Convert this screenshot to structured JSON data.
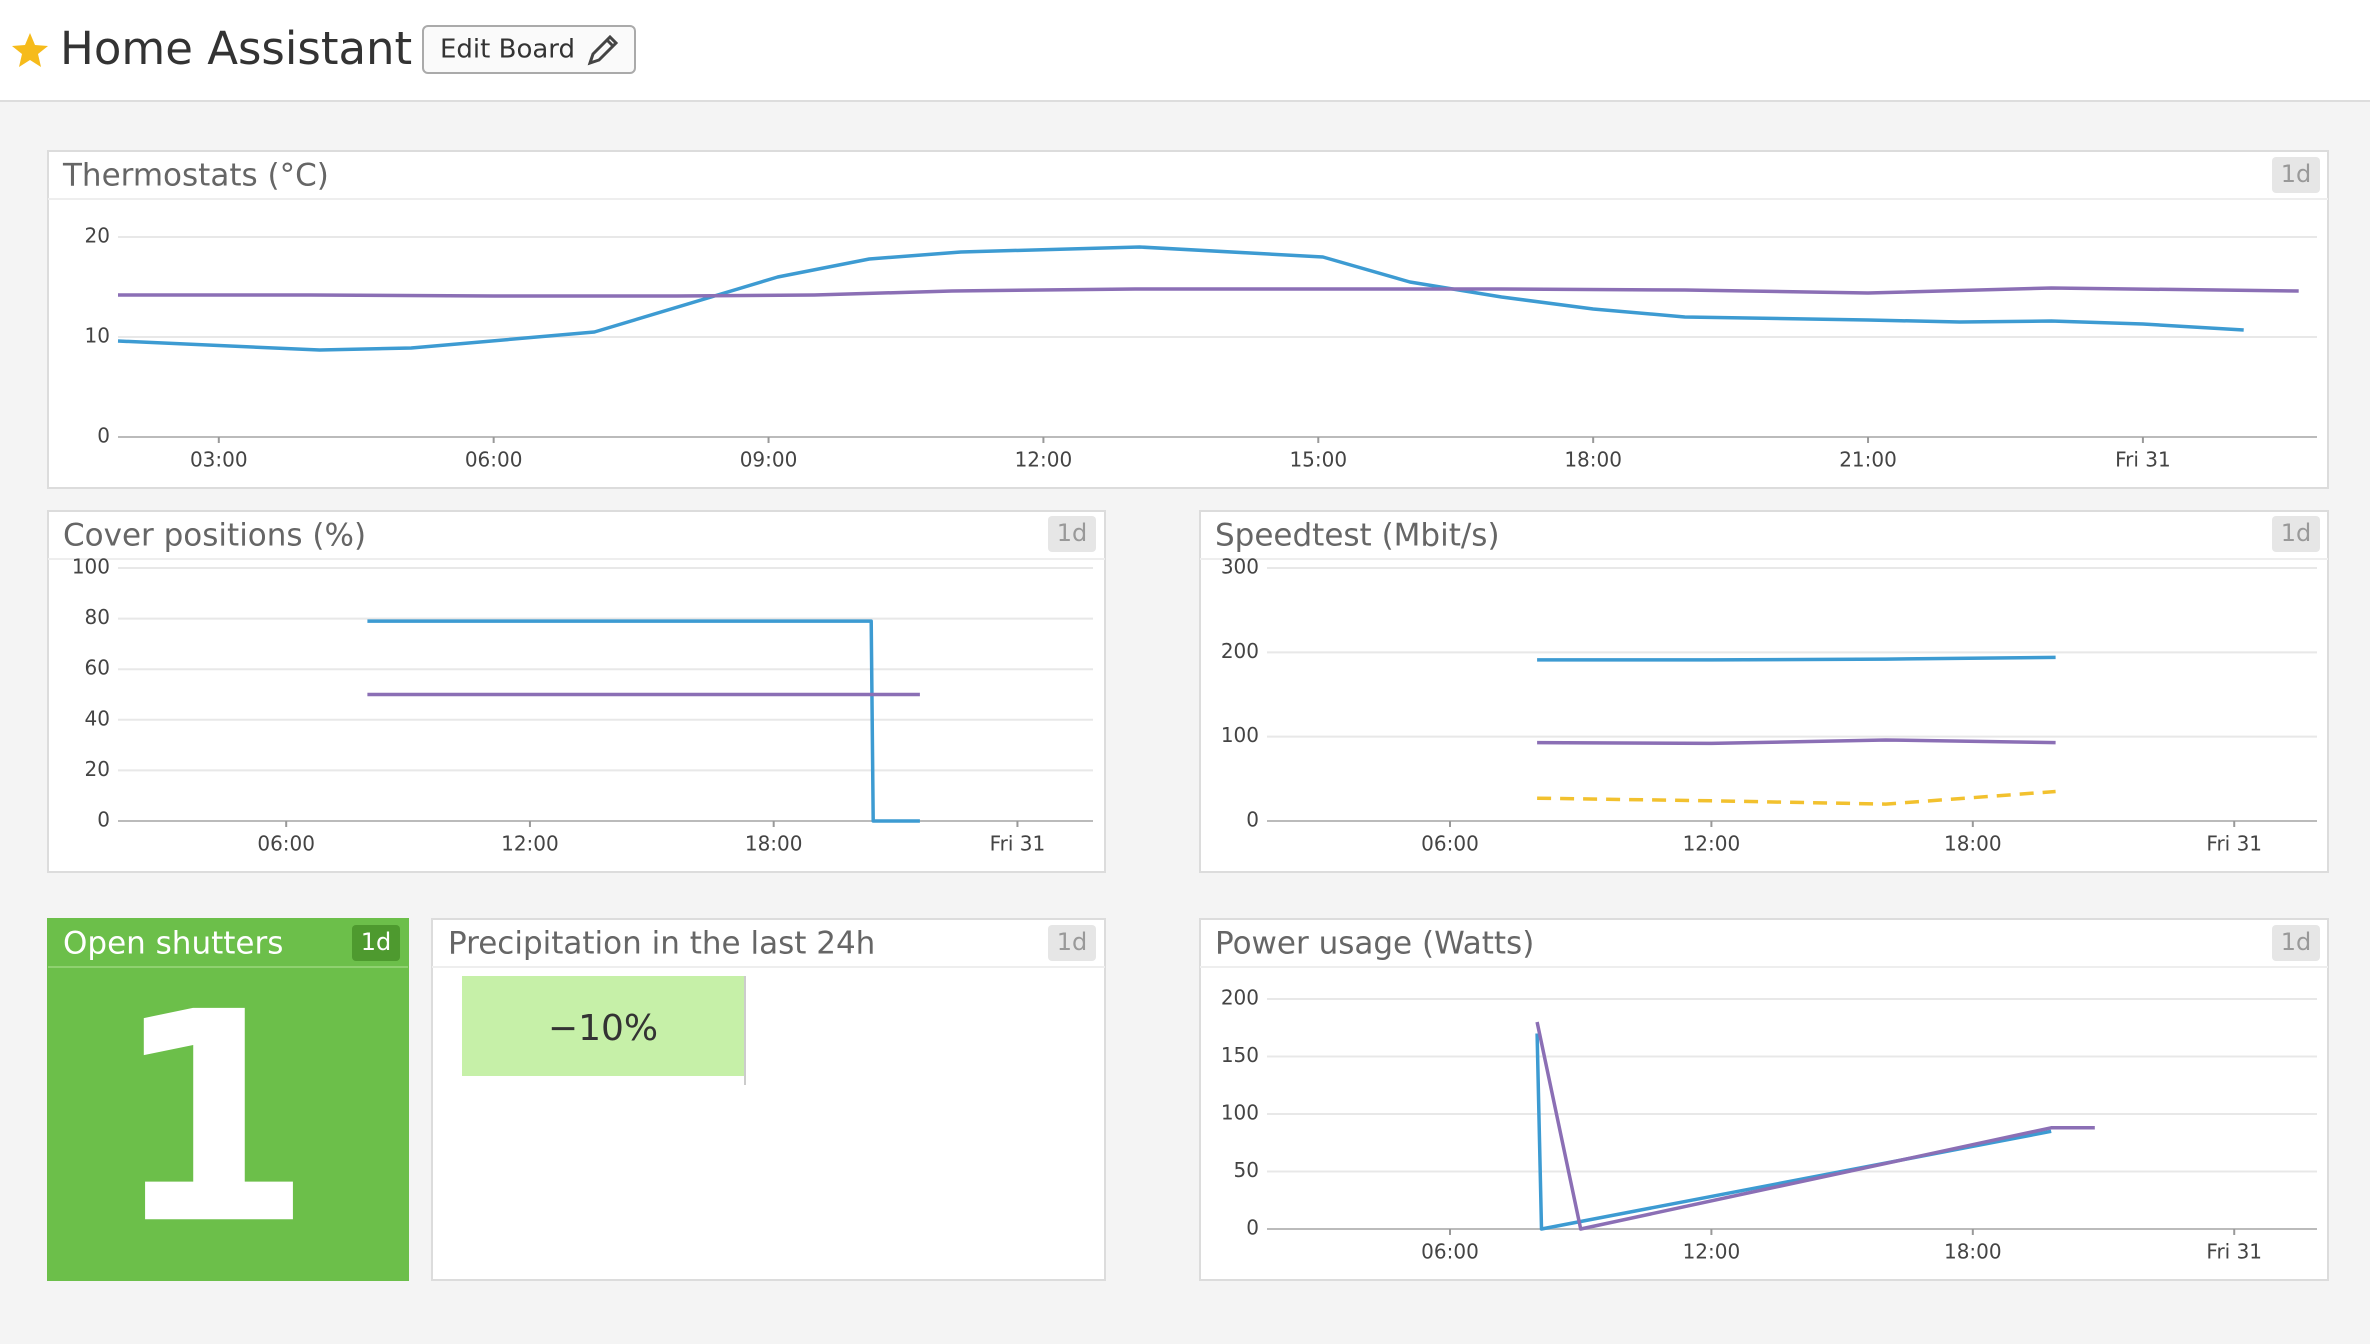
{
  "header": {
    "title": "Home Assistant",
    "button": "Edit Board"
  },
  "chart_data": [
    {
      "type": "line",
      "title": "Thermostats (°C)",
      "badge": "1d",
      "xlim": [
        1.9,
        25.9
      ],
      "ylim": [
        0,
        20
      ],
      "yticks": [
        0,
        10,
        20
      ],
      "xticks": [
        {
          "value": 3,
          "label": "03:00"
        },
        {
          "value": 6,
          "label": "06:00"
        },
        {
          "value": 9,
          "label": "09:00"
        },
        {
          "value": 12,
          "label": "12:00"
        },
        {
          "value": 15,
          "label": "15:00"
        },
        {
          "value": 18,
          "label": "18:00"
        },
        {
          "value": 21,
          "label": "21:00"
        },
        {
          "value": 24,
          "label": "Fri 31"
        }
      ],
      "grid": true,
      "series": [
        {
          "color": "#3d9bd2",
          "x": [
            1.9,
            4.1,
            5.1,
            7.1,
            9.1,
            10.1,
            11.1,
            13.05,
            15.05,
            16.0,
            17.0,
            18.0,
            19.0,
            21.0,
            22.0,
            23.0,
            24.0,
            25.1
          ],
          "values": [
            9.6,
            8.7,
            8.9,
            10.5,
            16,
            17.8,
            18.5,
            19,
            18,
            15.5,
            14,
            12.8,
            12,
            11.7,
            11.5,
            11.6,
            11.3,
            10.7
          ]
        },
        {
          "color": "#8b6fb5",
          "x": [
            1.9,
            4,
            6,
            8,
            9.5,
            11,
            13,
            15,
            17,
            19,
            21,
            23,
            25.7
          ],
          "values": [
            14.2,
            14.2,
            14.1,
            14.1,
            14.2,
            14.6,
            14.8,
            14.8,
            14.8,
            14.7,
            14.4,
            14.9,
            14.6
          ]
        }
      ]
    },
    {
      "type": "line",
      "title": "Cover positions (%)",
      "badge": "1d",
      "xlim": [
        1.86,
        25.86
      ],
      "ylim": [
        0,
        100
      ],
      "yticks": [
        0,
        20,
        40,
        60,
        80,
        100
      ],
      "xticks": [
        {
          "value": 6,
          "label": "06:00"
        },
        {
          "value": 12,
          "label": "12:00"
        },
        {
          "value": 18,
          "label": "18:00"
        },
        {
          "value": 24,
          "label": "Fri 31"
        }
      ],
      "grid": true,
      "series": [
        {
          "color": "#3d9bd2",
          "x": [
            8.0,
            20.4,
            20.45,
            21.6
          ],
          "values": [
            79,
            79,
            0,
            0
          ]
        },
        {
          "color": "#8b6fb5",
          "x": [
            8.0,
            21.6
          ],
          "values": [
            50,
            50
          ]
        }
      ]
    },
    {
      "type": "line",
      "title": "Speedtest (Mbit/s)",
      "badge": "1d",
      "xlim": [
        1.8,
        25.9
      ],
      "ylim": [
        0,
        300
      ],
      "yticks": [
        0,
        100,
        200,
        300
      ],
      "xticks": [
        {
          "value": 6,
          "label": "06:00"
        },
        {
          "value": 12,
          "label": "12:00"
        },
        {
          "value": 18,
          "label": "18:00"
        },
        {
          "value": 24,
          "label": "Fri 31"
        }
      ],
      "grid": true,
      "series": [
        {
          "color": "#3d9bd2",
          "x": [
            8.0,
            12,
            16,
            19.9
          ],
          "values": [
            191,
            191,
            192,
            194
          ]
        },
        {
          "color": "#8b6fb5",
          "x": [
            8.0,
            12,
            16,
            19.9
          ],
          "values": [
            93,
            92,
            96,
            93
          ]
        },
        {
          "color": "#f2c12e",
          "dash": true,
          "x": [
            8.0,
            12,
            16,
            19.9
          ],
          "values": [
            27,
            24,
            20,
            35
          ]
        }
      ]
    },
    {
      "type": "line",
      "title": "Power usage (Watts)",
      "badge": "1d",
      "xlim": [
        1.8,
        25.9
      ],
      "ylim": [
        0,
        200
      ],
      "yticks": [
        0,
        50,
        100,
        150,
        200
      ],
      "xticks": [
        {
          "value": 6,
          "label": "06:00"
        },
        {
          "value": 12,
          "label": "12:00"
        },
        {
          "value": 18,
          "label": "18:00"
        },
        {
          "value": 24,
          "label": "Fri 31"
        }
      ],
      "grid": true,
      "series": [
        {
          "color": "#3d9bd2",
          "x": [
            8.0,
            8.1,
            19.8
          ],
          "values": [
            170,
            0,
            85
          ]
        },
        {
          "color": "#8b6fb5",
          "x": [
            8.0,
            9.0,
            19.8,
            20.8
          ],
          "values": [
            180,
            0,
            88,
            88
          ]
        }
      ]
    }
  ],
  "widgets": [
    {
      "title": "Open shutters",
      "badge": "1d",
      "value": 1
    },
    {
      "title": "Precipitation in the last 24h",
      "badge": "1d",
      "value": "−10%"
    }
  ]
}
